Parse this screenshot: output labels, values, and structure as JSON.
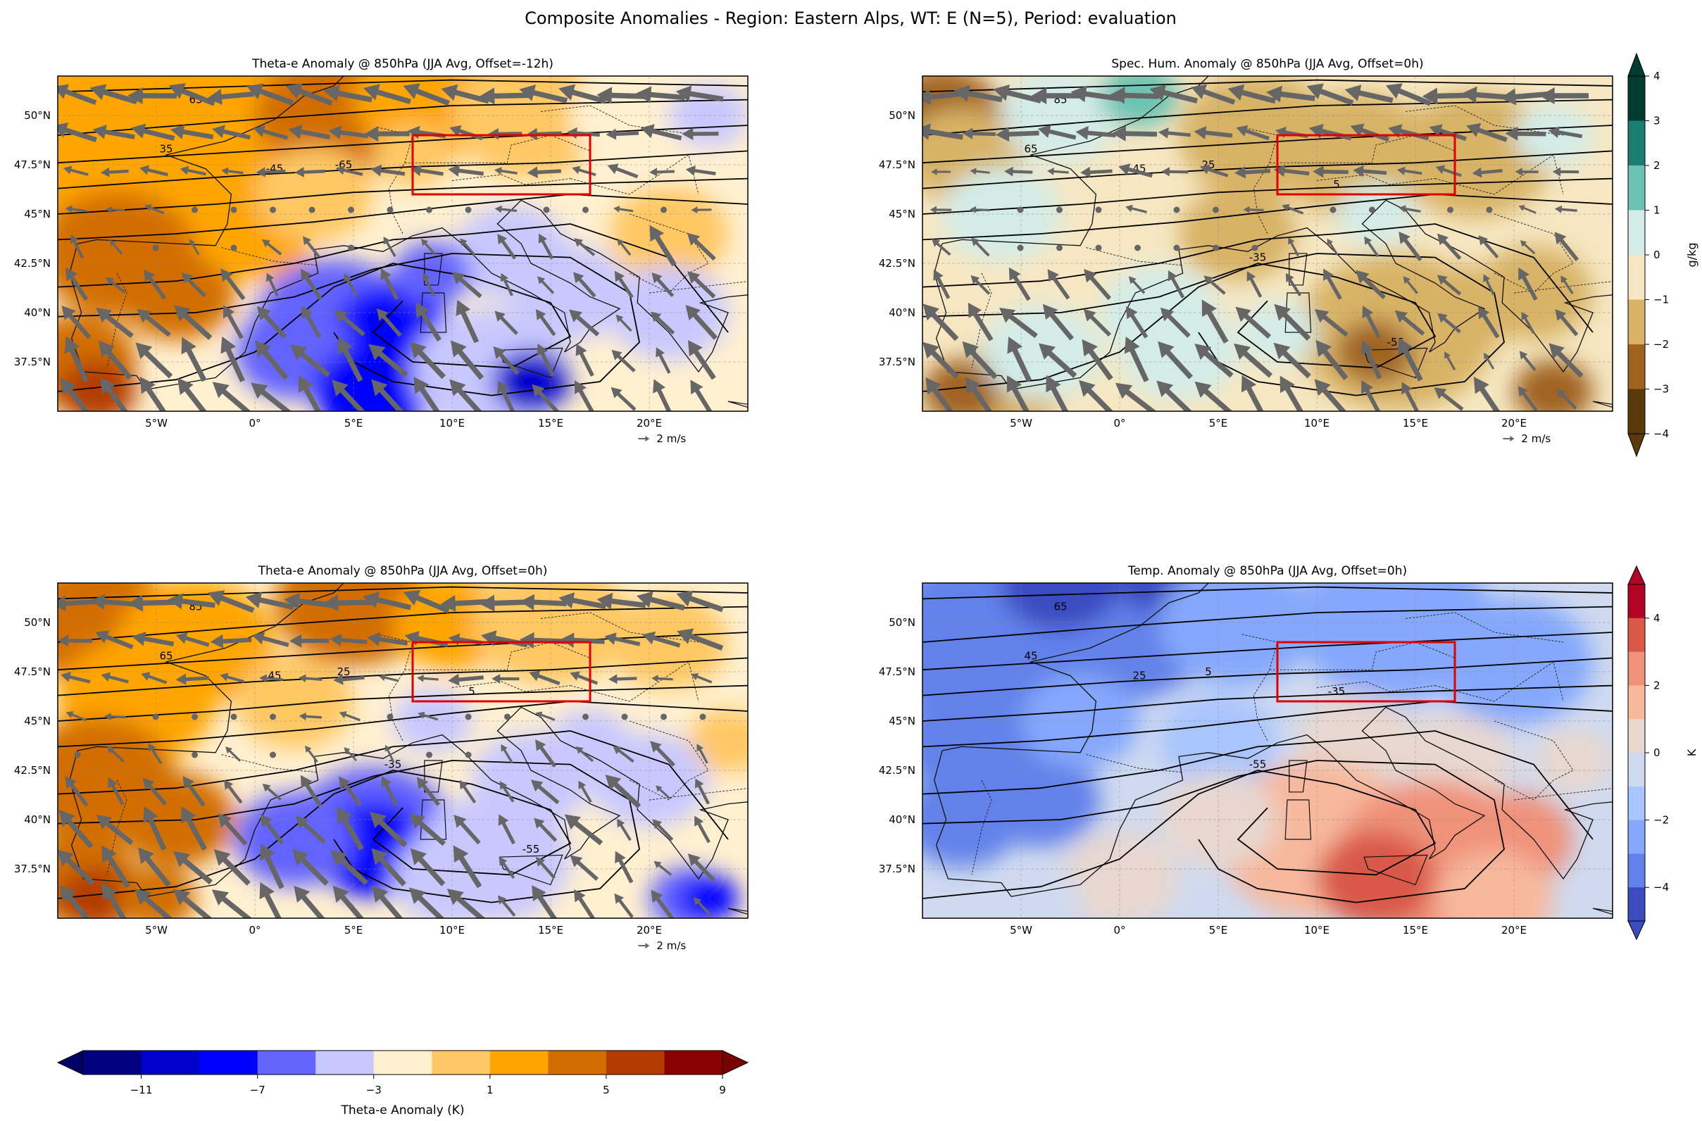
{
  "suptitle": "Composite Anomalies - Region: Eastern Alps, WT: E (N=5), Period: evaluation",
  "panels": [
    {
      "title": "Theta-e Anomaly @ 850hPa (JJA Avg, Offset=-12h)",
      "field": "thetae",
      "contour_labels": [
        "65",
        "35",
        "-45",
        "-65"
      ],
      "quiver_key": "2 m/s"
    },
    {
      "title": "Spec. Hum. Anomaly @ 850hPa (JJA Avg, Offset=0h)",
      "field": "q",
      "contour_labels": [
        "85",
        "65",
        "45",
        "25",
        "5",
        "-35",
        "-55"
      ],
      "quiver_key": "2 m/s"
    },
    {
      "title": "Theta-e Anomaly @ 850hPa (JJA Avg, Offset=0h)",
      "field": "thetae",
      "contour_labels": [
        "85",
        "65",
        "45",
        "25",
        "5",
        "-35",
        "-55"
      ],
      "quiver_key": "2 m/s"
    },
    {
      "title": "Temp. Anomaly @ 850hPa (JJA Avg, Offset=0h)",
      "field": "t",
      "contour_labels": [
        "65",
        "45",
        "25",
        "5",
        "-35",
        "-55"
      ],
      "quiver_key": ""
    }
  ],
  "lon_ticks": [
    "5°W",
    "0°",
    "5°E",
    "10°E",
    "15°E",
    "20°E"
  ],
  "lat_ticks": [
    "50°N",
    "47.5°N",
    "45°N",
    "42.5°N",
    "40°N",
    "37.5°N"
  ],
  "region_box": {
    "name": "Eastern Alps"
  },
  "colorbars": {
    "q": {
      "label": "g/kg",
      "ticks": [
        "4",
        "3",
        "2",
        "1",
        "0",
        "−1",
        "−2",
        "−3",
        "−4"
      ],
      "colors": [
        "#003c30",
        "#1a7f72",
        "#6cc3b2",
        "#d3ece8",
        "#f6e7c2",
        "#d8b366",
        "#a06420",
        "#5a3a0a"
      ]
    },
    "t": {
      "label": "K",
      "ticks": [
        "4",
        "2",
        "0",
        "−2",
        "−4"
      ],
      "colors": [
        "#b40426",
        "#d95847",
        "#f0927a",
        "#f7b89c",
        "#e7d7cf",
        "#cfdaf0",
        "#a9c5fd",
        "#85a8fc",
        "#6282ea",
        "#3b4cc0"
      ]
    },
    "thetae": {
      "label": "Theta-e Anomaly (K)",
      "ticks": [
        "−11",
        "−7",
        "−3",
        "1",
        "5",
        "9"
      ],
      "colors": [
        "#000080",
        "#0000cd",
        "#0000ff",
        "#6464ff",
        "#c8c8ff",
        "#fff0d0",
        "#ffc864",
        "#ffa500",
        "#d26e00",
        "#b43c00",
        "#8b0000"
      ]
    }
  }
}
